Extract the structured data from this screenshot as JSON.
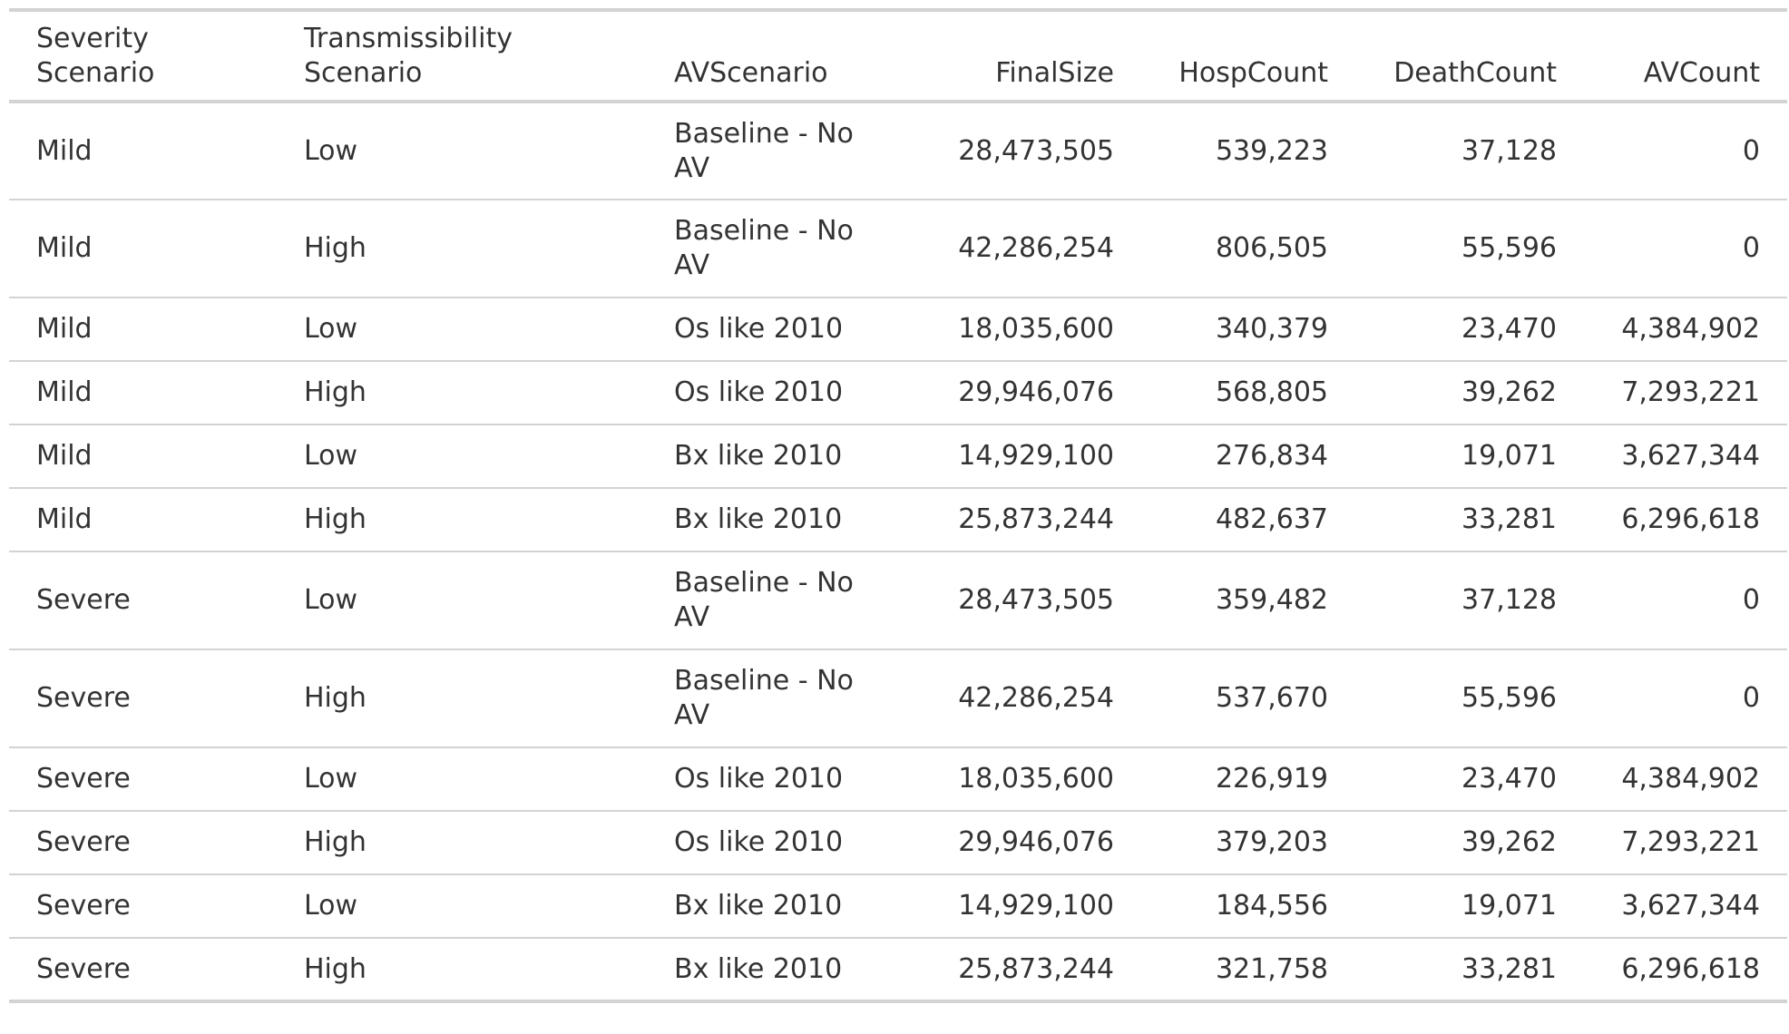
{
  "table": {
    "columns": [
      {
        "label": "Severity Scenario",
        "align": "left"
      },
      {
        "label": "Transmissibility Scenario",
        "align": "left"
      },
      {
        "label": "AVScenario",
        "align": "left"
      },
      {
        "label": "FinalSize",
        "align": "right"
      },
      {
        "label": "HospCount",
        "align": "right"
      },
      {
        "label": "DeathCount",
        "align": "right"
      },
      {
        "label": "AVCount",
        "align": "right"
      }
    ],
    "rows": [
      [
        "Mild",
        "Low",
        "Baseline - No AV",
        "28,473,505",
        "539,223",
        "37,128",
        "0"
      ],
      [
        "Mild",
        "High",
        "Baseline - No AV",
        "42,286,254",
        "806,505",
        "55,596",
        "0"
      ],
      [
        "Mild",
        "Low",
        "Os like 2010",
        "18,035,600",
        "340,379",
        "23,470",
        "4,384,902"
      ],
      [
        "Mild",
        "High",
        "Os like 2010",
        "29,946,076",
        "568,805",
        "39,262",
        "7,293,221"
      ],
      [
        "Mild",
        "Low",
        "Bx like 2010",
        "14,929,100",
        "276,834",
        "19,071",
        "3,627,344"
      ],
      [
        "Mild",
        "High",
        "Bx like 2010",
        "25,873,244",
        "482,637",
        "33,281",
        "6,296,618"
      ],
      [
        "Severe",
        "Low",
        "Baseline - No AV",
        "28,473,505",
        "359,482",
        "37,128",
        "0"
      ],
      [
        "Severe",
        "High",
        "Baseline - No AV",
        "42,286,254",
        "537,670",
        "55,596",
        "0"
      ],
      [
        "Severe",
        "Low",
        "Os like 2010",
        "18,035,600",
        "226,919",
        "23,470",
        "4,384,902"
      ],
      [
        "Severe",
        "High",
        "Os like 2010",
        "29,946,076",
        "379,203",
        "39,262",
        "7,293,221"
      ],
      [
        "Severe",
        "Low",
        "Bx like 2010",
        "14,929,100",
        "184,556",
        "19,071",
        "3,627,344"
      ],
      [
        "Severe",
        "High",
        "Bx like 2010",
        "25,873,244",
        "321,758",
        "33,281",
        "6,296,618"
      ]
    ]
  },
  "colors": {
    "text": "#333333",
    "rule": "#d3d3d3"
  }
}
